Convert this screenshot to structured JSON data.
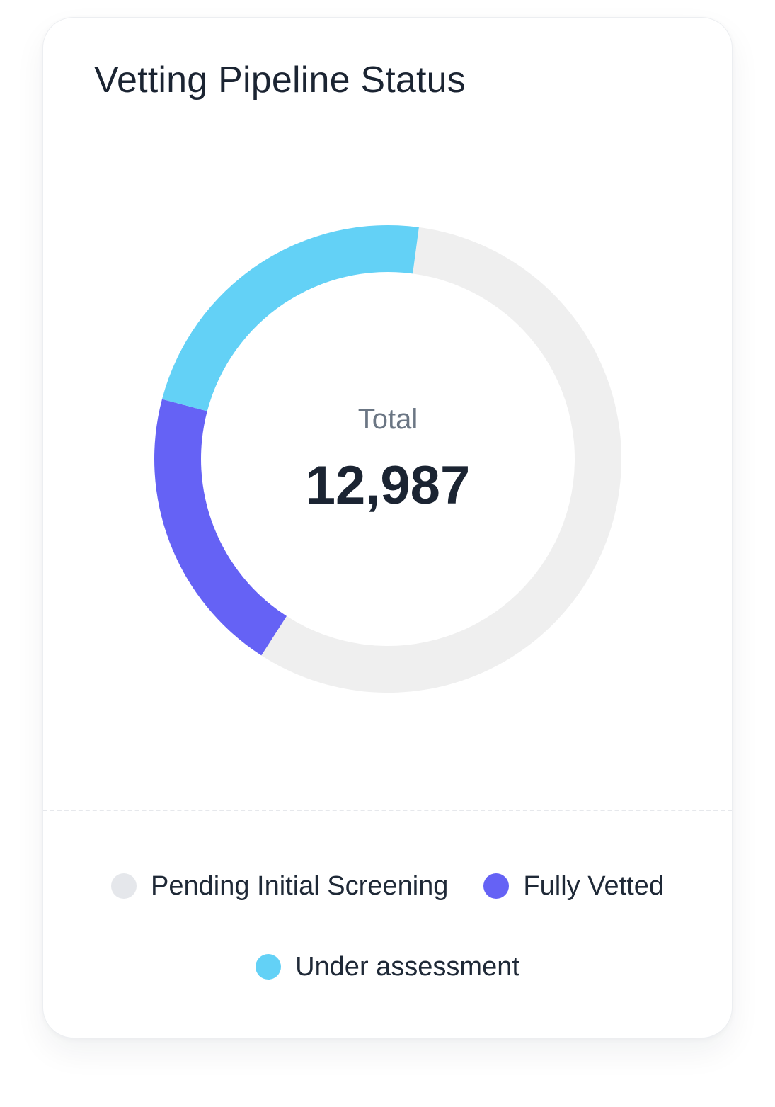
{
  "card": {
    "title": "Vetting Pipeline Status"
  },
  "chart_data": {
    "type": "pie",
    "title": "Vetting Pipeline Status",
    "center_label": "Total",
    "total_display": "12,987",
    "categories": [
      "Pending Initial Screening",
      "Fully Vetted",
      "Under assessment"
    ],
    "values": [
      7401,
      2598,
      2988
    ],
    "colors": [
      "#efefef",
      "#6562f5",
      "#63d1f6"
    ],
    "legend_dot_colors": [
      "#e5e7eb",
      "#6562f5",
      "#63d1f6"
    ],
    "legend_position": "bottom"
  }
}
